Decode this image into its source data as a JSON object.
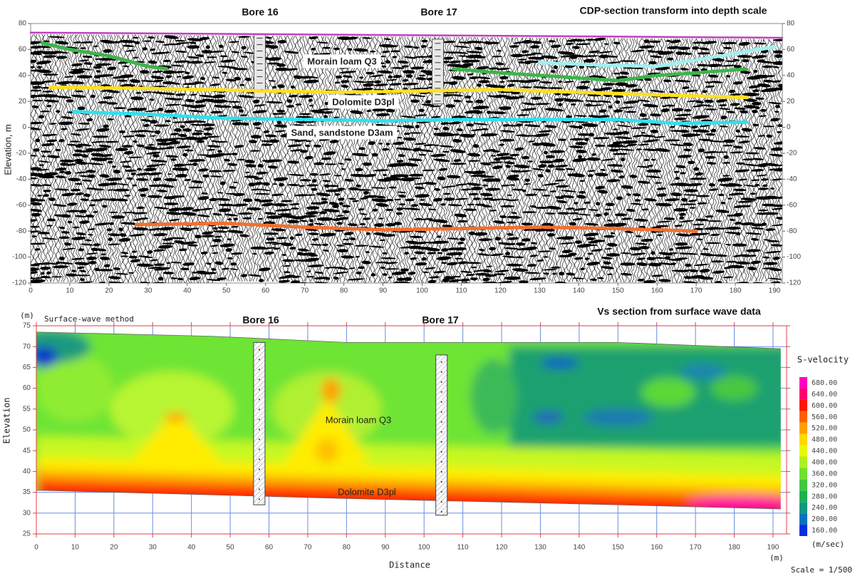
{
  "chart_data": [
    {
      "type": "seismic",
      "title": "CDP-section transform into depth scale",
      "ylabel": "Elevation, m",
      "xlim": [
        0,
        192
      ],
      "ylim": [
        -120,
        80
      ],
      "xticks": [
        0,
        10,
        20,
        30,
        40,
        50,
        60,
        70,
        80,
        90,
        100,
        110,
        120,
        130,
        140,
        150,
        160,
        170,
        180,
        190
      ],
      "yticks": [
        -120,
        -100,
        -80,
        -60,
        -40,
        -20,
        0,
        20,
        40,
        60,
        80
      ],
      "annotations": [
        "Morain loam Q3",
        "Dolomite D3pl",
        "Sand, sandstone D3am"
      ],
      "bores": [
        {
          "label": "Bore 16",
          "x": 58.5,
          "top": 72,
          "bottom": 23
        },
        {
          "label": "Bore 17",
          "x": 104,
          "top": 68,
          "bottom": 18
        }
      ],
      "series": [
        {
          "color": "#c040c0",
          "x": [
            0,
            192
          ],
          "values": [
            73,
            69
          ]
        },
        {
          "color": "#3cb44b",
          "x": [
            3,
            10,
            20,
            30,
            35,
            70,
            108,
            120,
            140,
            150,
            160,
            170,
            183
          ],
          "values": [
            65,
            60,
            55,
            47,
            45,
            null,
            45,
            42,
            38,
            36,
            40,
            42,
            45
          ]
        },
        {
          "color": "#a0f0f0",
          "x": [
            130,
            145,
            160,
            170,
            180,
            190
          ],
          "values": [
            50,
            48,
            47,
            52,
            57,
            62
          ]
        },
        {
          "color": "#ffe020",
          "x": [
            5,
            30,
            60,
            80,
            100,
            120,
            140,
            160,
            183
          ],
          "values": [
            31,
            30,
            28,
            27,
            28,
            29,
            27,
            25,
            23
          ]
        },
        {
          "color": "#30e0f0",
          "x": [
            11,
            30,
            50,
            70,
            90,
            110,
            130,
            150,
            165,
            183
          ],
          "values": [
            12,
            10,
            7,
            6,
            5,
            6,
            6,
            6,
            3,
            4
          ]
        },
        {
          "color": "#f07030",
          "x": [
            27,
            50,
            70,
            90,
            110,
            130,
            150,
            170
          ],
          "values": [
            -75,
            -74,
            -77,
            -79,
            -78,
            -77,
            -78,
            -80
          ]
        }
      ]
    },
    {
      "type": "contour",
      "title": "Vs section from surface wave data",
      "subtitle": "Surface-wave method",
      "xlabel": "Distance",
      "ylabel": "Elevation",
      "xunit": "(m)",
      "yunit": "(m)",
      "xlim": [
        0,
        193.5
      ],
      "ylim": [
        25,
        75
      ],
      "xticks": [
        0,
        10,
        20,
        30,
        40,
        50,
        60,
        70,
        80,
        90,
        100,
        110,
        120,
        130,
        140,
        150,
        160,
        170,
        180,
        190
      ],
      "yticks": [
        25,
        30,
        35,
        40,
        45,
        50,
        55,
        60,
        65,
        70,
        75
      ],
      "annotations": [
        "Morain loam Q3",
        "Dolomite D3pl"
      ],
      "bores": [
        {
          "label": "Bore 16",
          "x": 57.5,
          "top": 71,
          "bottom": 32
        },
        {
          "label": "Bore 17",
          "x": 104.5,
          "top": 68,
          "bottom": 29.5
        }
      ],
      "surface": {
        "x": [
          0,
          45,
          80,
          150,
          192
        ],
        "top": [
          73.5,
          72.5,
          71,
          71,
          69.5
        ],
        "bottom": [
          35.5,
          34.4,
          33.5,
          32,
          31
        ]
      },
      "colorbar": {
        "title": "S-velocity",
        "unit": "(m/sec)",
        "lim": [
          140,
          700
        ],
        "ticks": [
          {
            "value": 160,
            "label": "160.00"
          },
          {
            "value": 200,
            "label": "200.00"
          },
          {
            "value": 240,
            "label": "240.00"
          },
          {
            "value": 280,
            "label": "280.00"
          },
          {
            "value": 320,
            "label": "320.00"
          },
          {
            "value": 360,
            "label": "360.00"
          },
          {
            "value": 400,
            "label": "400.00"
          },
          {
            "value": 440,
            "label": "440.00"
          },
          {
            "value": 480,
            "label": "480.00"
          },
          {
            "value": 520,
            "label": "520.00"
          },
          {
            "value": 560,
            "label": "560.00"
          },
          {
            "value": 600,
            "label": "600.00"
          },
          {
            "value": 640,
            "label": "640.00"
          },
          {
            "value": 680,
            "label": "680.00"
          }
        ],
        "colors": [
          "#0030e0",
          "#0a70c0",
          "#109880",
          "#20b050",
          "#40c840",
          "#70e030",
          "#b0f020",
          "#e8f800",
          "#ffd800",
          "#ffa000",
          "#ff6000",
          "#ff1800",
          "#ff0070",
          "#ff00c0"
        ]
      },
      "scale": "Scale = 1/500"
    }
  ]
}
